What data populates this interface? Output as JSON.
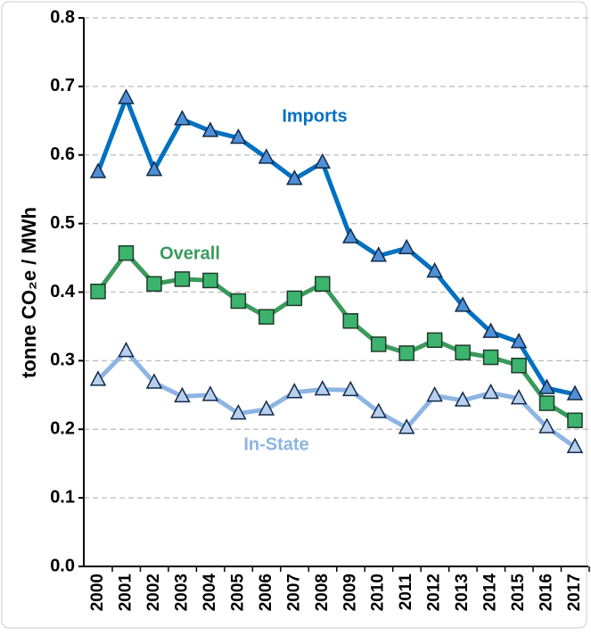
{
  "chart_data": {
    "type": "line",
    "y_label": "tonne CO₂e / MWh",
    "categories": [
      "2000",
      "2001",
      "2002",
      "2003",
      "2004",
      "2005",
      "2006",
      "2007",
      "2008",
      "2009",
      "2010",
      "2011",
      "2012",
      "2013",
      "2014",
      "2015",
      "2016",
      "2017"
    ],
    "series": [
      {
        "name": "Imports",
        "color": "#0070c0",
        "marker_color": "#4f8fd6",
        "marker": "triangle",
        "values": [
          0.575,
          0.683,
          0.578,
          0.652,
          0.635,
          0.625,
          0.596,
          0.565,
          0.589,
          0.48,
          0.453,
          0.464,
          0.43,
          0.38,
          0.342,
          0.327,
          0.26,
          0.251
        ]
      },
      {
        "name": "Overall",
        "color": "#3a9a5b",
        "marker_color": "#3cb46e",
        "marker": "square",
        "values": [
          0.401,
          0.457,
          0.412,
          0.419,
          0.417,
          0.387,
          0.364,
          0.391,
          0.412,
          0.358,
          0.324,
          0.311,
          0.33,
          0.312,
          0.305,
          0.293,
          0.238,
          0.213
        ]
      },
      {
        "name": "In-State",
        "color": "#8db4e2",
        "marker_color": "#b8d0ec",
        "marker": "triangle",
        "values": [
          0.272,
          0.314,
          0.268,
          0.248,
          0.25,
          0.223,
          0.229,
          0.254,
          0.258,
          0.257,
          0.225,
          0.202,
          0.249,
          0.242,
          0.253,
          0.245,
          0.203,
          0.174
        ]
      }
    ],
    "ylim": [
      0,
      0.8
    ],
    "yticks": [
      {
        "value": 0,
        "label": "0.0"
      },
      0.1,
      0.2,
      0.3,
      0.4,
      0.5,
      0.6,
      0.7,
      0.8
    ],
    "grid": true
  }
}
